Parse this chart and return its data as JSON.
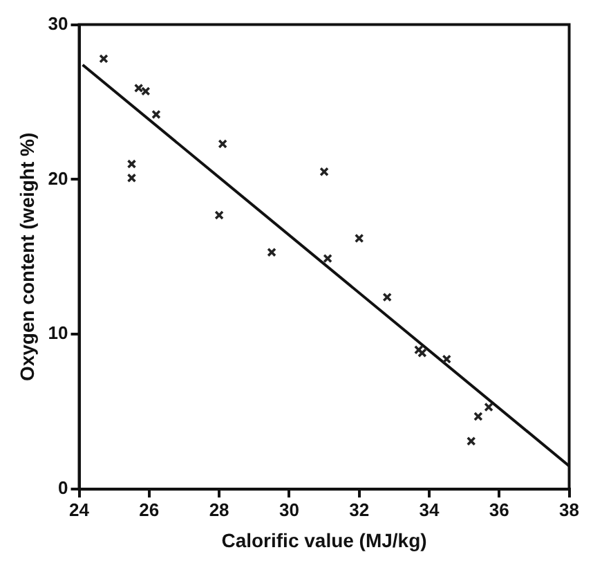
{
  "chart_data": {
    "type": "scatter",
    "xlabel": "Calorific value (MJ/kg)",
    "ylabel": "Oxygen content (weight %)",
    "xlim": [
      24,
      38
    ],
    "xticks": [
      24,
      26,
      28,
      30,
      32,
      34,
      36,
      38
    ],
    "ylim": [
      0,
      30
    ],
    "yticks": [
      0,
      10,
      20,
      30
    ],
    "grid": false,
    "legend": false,
    "marker": "cross",
    "series": [
      {
        "type": "scatter",
        "color": "#222222",
        "x": [
          24.7,
          25.7,
          25.9,
          26.2,
          28.1,
          25.5,
          25.5,
          31.0,
          28.0,
          29.5,
          32.0,
          31.1,
          32.8,
          33.7,
          33.8,
          34.5,
          35.7,
          35.4,
          35.2
        ],
        "values": [
          27.8,
          25.9,
          25.7,
          24.2,
          22.3,
          21.0,
          20.1,
          20.5,
          17.7,
          15.3,
          16.2,
          14.9,
          12.4,
          9.0,
          8.8,
          8.4,
          5.3,
          4.7,
          3.1
        ]
      },
      {
        "type": "line",
        "color": "#111111",
        "marker": "none",
        "line_style": "solid",
        "x": [
          24.1,
          38
        ],
        "values": [
          27.4,
          1.5
        ]
      }
    ]
  }
}
